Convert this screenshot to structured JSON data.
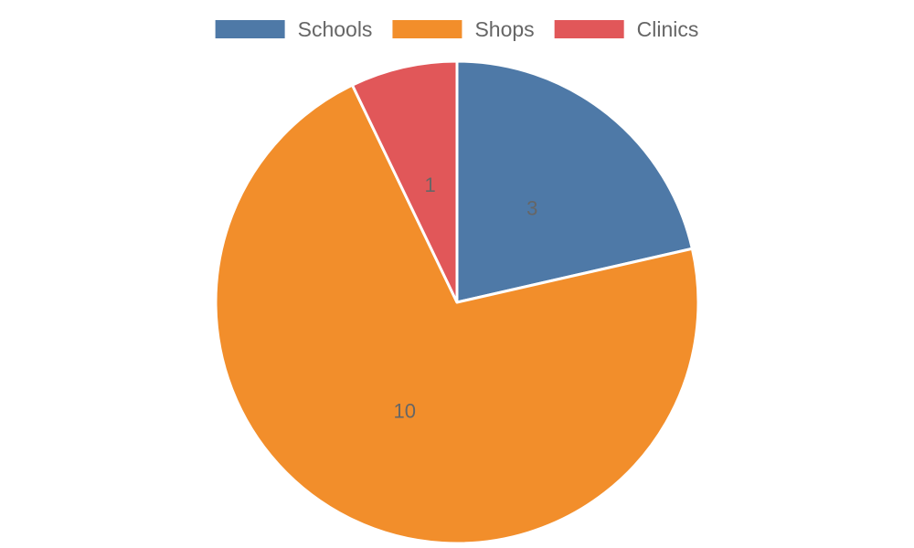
{
  "chart_data": {
    "type": "pie",
    "categories": [
      "Schools",
      "Shops",
      "Clinics"
    ],
    "values": [
      3,
      10,
      1
    ],
    "colors": [
      "#4e79a7",
      "#f28e2b",
      "#e15759"
    ],
    "data_labels": [
      "3",
      "10",
      "1"
    ],
    "legend_position": "top",
    "start_angle": "12 o'clock",
    "direction": "clockwise"
  }
}
